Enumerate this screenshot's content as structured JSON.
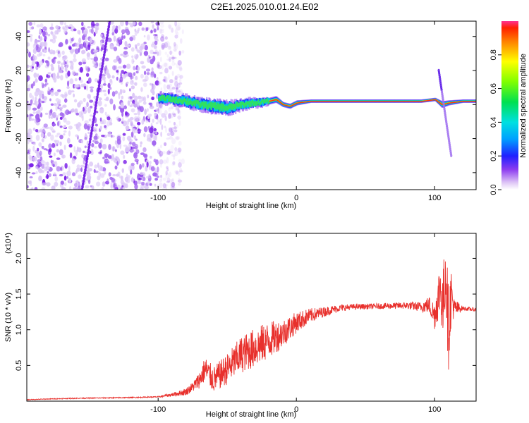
{
  "page_title": "C2E1.2025.010.01.24.E02",
  "chart_data": [
    {
      "type": "heatmap",
      "name": "spectrogram",
      "title": "C2E1.2025.010.01.24.E02",
      "xlabel": "Height of straight line (km)",
      "ylabel": "Frequency (Hz)",
      "xlim": [
        -195,
        130
      ],
      "ylim": [
        -50,
        49
      ],
      "xticks": [
        -100,
        0,
        100
      ],
      "yticks": [
        -40,
        -20,
        0,
        20,
        40
      ],
      "colorbar": {
        "label": "Normalized spectral amplitude",
        "range": [
          0,
          1
        ],
        "ticks": [
          "0.0",
          "0.2",
          "0.4",
          "0.6",
          "0.8"
        ],
        "tick_values": [
          0.0,
          0.2,
          0.4,
          0.6,
          0.8
        ]
      },
      "features": [
        {
          "name": "noise-region",
          "x_range": [
            -195,
            -100
          ],
          "y_range": [
            -50,
            49
          ]
        },
        {
          "name": "dispersed-trace",
          "x": [
            -155,
            -135
          ],
          "y": [
            -50,
            49
          ]
        },
        {
          "name": "main-band",
          "x_range": [
            -100,
            130
          ],
          "center_freq": 1.5
        },
        {
          "name": "end-feature",
          "x": [
            103,
            112
          ],
          "y": [
            20,
            -30
          ]
        }
      ],
      "band_profile": {
        "x": [
          -100,
          -90,
          -80,
          -70,
          -60,
          -50,
          -40,
          -30,
          -20,
          -15,
          -10,
          -5,
          0,
          10,
          20,
          40,
          60,
          80,
          90,
          100,
          105,
          110,
          120,
          130
        ],
        "center": [
          4,
          3,
          2,
          0,
          -1,
          -2,
          0,
          1,
          2,
          3,
          0,
          -1,
          1,
          2,
          2,
          2,
          2,
          2,
          2,
          3,
          0,
          1,
          2,
          2
        ],
        "width": [
          6,
          6,
          7,
          7,
          8,
          8,
          6,
          5,
          4,
          4,
          3,
          3,
          3,
          2,
          2,
          2,
          2,
          2,
          2,
          2,
          4,
          3,
          2,
          2
        ]
      }
    },
    {
      "type": "line",
      "name": "snr",
      "xlabel": "Height of straight line (km)",
      "ylabel": "SNR (10 * v/v)",
      "y_multiplier": "(x10⁴)",
      "xlim": [
        -195,
        130
      ],
      "ylim": [
        0,
        23500
      ],
      "xticks": [
        -100,
        0,
        100
      ],
      "yticks": [
        5000,
        10000,
        15000,
        20000
      ],
      "ytick_labels": [
        "0.5",
        "1.0",
        "1.5",
        "2.0"
      ],
      "series": [
        {
          "name": "SNR",
          "color": "#e8302c",
          "x": [
            -195,
            -180,
            -160,
            -140,
            -120,
            -100,
            -90,
            -80,
            -75,
            -70,
            -66,
            -60,
            -50,
            -40,
            -30,
            -20,
            -10,
            0,
            10,
            20,
            30,
            40,
            60,
            80,
            90,
            96,
            100,
            104,
            106,
            108,
            110,
            112,
            114,
            120,
            130
          ],
          "y": [
            200,
            300,
            400,
            450,
            500,
            600,
            900,
            1300,
            2000,
            3000,
            4500,
            3000,
            4500,
            6500,
            7500,
            8500,
            9500,
            11000,
            12000,
            12500,
            13000,
            13200,
            13300,
            13400,
            13200,
            13500,
            12000,
            16000,
            13000,
            19000,
            10000,
            15000,
            13000,
            13000,
            12800
          ],
          "noise": [
            50,
            50,
            60,
            60,
            70,
            80,
            250,
            500,
            700,
            1200,
            1800,
            1800,
            2200,
            2600,
            2800,
            2600,
            2000,
            1500,
            1000,
            700,
            500,
            400,
            400,
            500,
            700,
            1200,
            2000,
            4000,
            5000,
            5500,
            6000,
            4000,
            1500,
            300,
            250
          ]
        }
      ]
    }
  ]
}
